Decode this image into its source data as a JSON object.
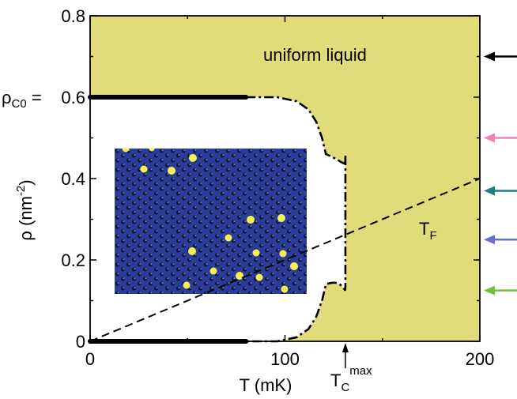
{
  "chart_data": {
    "type": "area",
    "xlabel": "T (mK)",
    "ylabel": "ρ (nm",
    "ylabel_sup": "-2",
    "ylabel_close": ")",
    "xlim": [
      0,
      200
    ],
    "ylim": [
      0,
      0.8
    ],
    "x_ticks": [
      0,
      100,
      200
    ],
    "x_tick_labels": [
      "0",
      "100",
      "200"
    ],
    "y_ticks": [
      0,
      0.2,
      0.4,
      0.6,
      0.8
    ],
    "y_tick_labels": [
      "0",
      "0.2",
      "0.4",
      "0.6",
      "0.8"
    ],
    "region_label": "uniform liquid",
    "rho_c0_label": "ρ",
    "rho_c0_sub": "C0",
    "rho_c0_eq": " = ",
    "tf_label": "T",
    "tf_sub": "F",
    "tc_label": "T",
    "tc_sub": "C",
    "tc_sup": "max",
    "liquid_color": "#e0dc7a",
    "boundary": {
      "upper": {
        "x": [
          80,
          96,
          106,
          112,
          116,
          119,
          121
        ],
        "y": [
          0.6,
          0.6,
          0.59,
          0.57,
          0.54,
          0.5,
          0.46
        ]
      },
      "lower": {
        "x": [
          80,
          96,
          106,
          112,
          116,
          119,
          121
        ],
        "y": [
          0.0,
          0.0,
          0.01,
          0.03,
          0.06,
          0.1,
          0.14
        ]
      },
      "right_x": 131,
      "right_y_range": [
        0.14,
        0.46
      ]
    },
    "solid_lines": [
      {
        "x": [
          0,
          80
        ],
        "y": [
          0.6,
          0.6
        ]
      },
      {
        "x": [
          0,
          80
        ],
        "y": [
          0.0,
          0.0
        ]
      }
    ],
    "tf_line": {
      "x": [
        0,
        200
      ],
      "y": [
        0.0,
        0.4
      ]
    },
    "tc_max_x": 131,
    "arrows": [
      {
        "y": 0.7,
        "color": "#000000"
      },
      {
        "y": 0.5,
        "color": "#ef82b6"
      },
      {
        "y": 0.37,
        "color": "#1f7f80"
      },
      {
        "y": 0.25,
        "color": "#6b70c7"
      },
      {
        "y": 0.125,
        "color": "#6fc23d"
      }
    ]
  }
}
